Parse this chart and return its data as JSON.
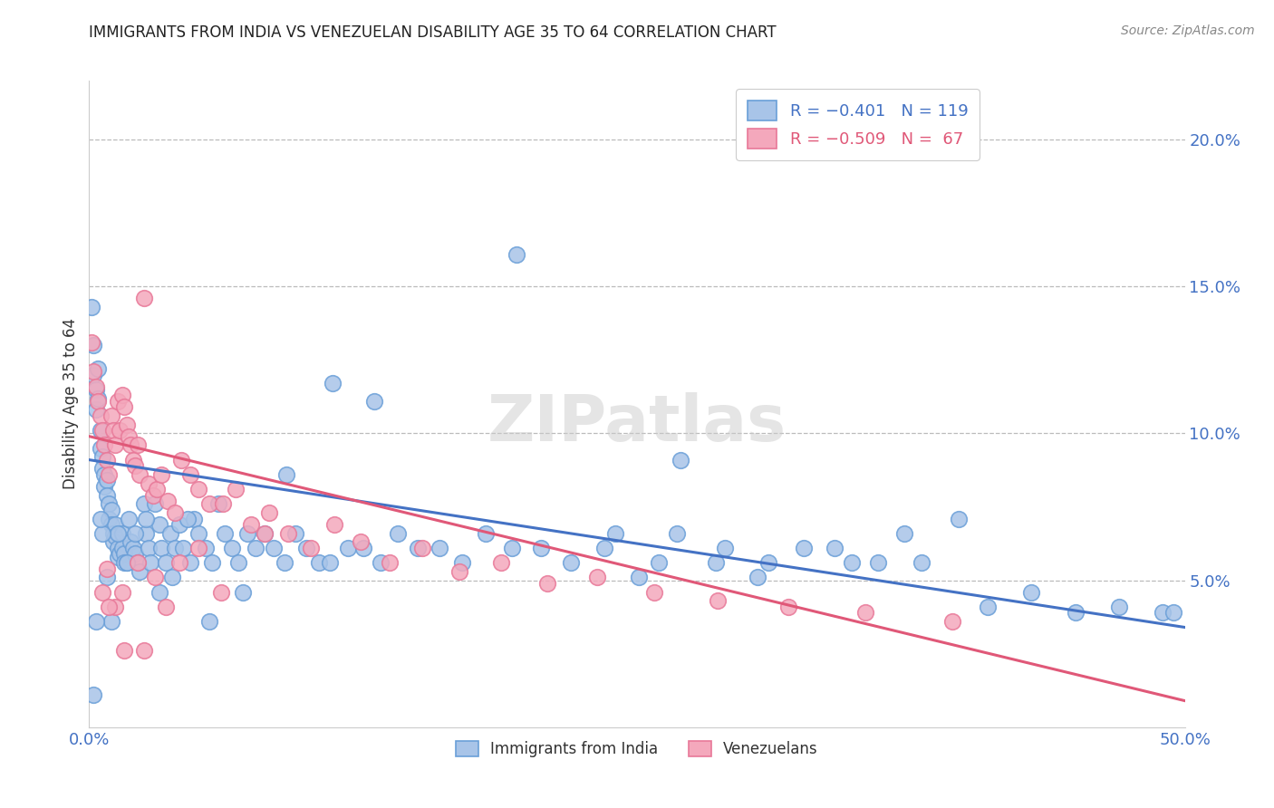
{
  "title": "IMMIGRANTS FROM INDIA VS VENEZUELAN DISABILITY AGE 35 TO 64 CORRELATION CHART",
  "source": "Source: ZipAtlas.com",
  "ylabel": "Disability Age 35 to 64",
  "x_min": 0.0,
  "x_max": 0.5,
  "y_min": 0.0,
  "y_max": 0.22,
  "y_ticks_right": [
    0.05,
    0.1,
    0.15,
    0.2
  ],
  "y_tick_labels_right": [
    "5.0%",
    "10.0%",
    "15.0%",
    "20.0%"
  ],
  "india_color": "#a8c4e8",
  "venezuela_color": "#f4a8bc",
  "india_edge_color": "#6a9fd8",
  "venezuela_edge_color": "#e87898",
  "india_line_color": "#4472c4",
  "venezuela_line_color": "#e05878",
  "watermark": "ZIPatlas",
  "india_trend_start_x": 0.0,
  "india_trend_start_y": 0.091,
  "india_trend_end_x": 0.5,
  "india_trend_end_y": 0.034,
  "venezuela_trend_start_x": 0.0,
  "venezuela_trend_start_y": 0.099,
  "venezuela_trend_end_x": 0.5,
  "venezuela_trend_end_y": 0.009,
  "india_scatter_x": [
    0.001,
    0.002,
    0.002,
    0.003,
    0.003,
    0.004,
    0.004,
    0.005,
    0.005,
    0.006,
    0.006,
    0.007,
    0.007,
    0.008,
    0.008,
    0.009,
    0.009,
    0.01,
    0.01,
    0.011,
    0.011,
    0.012,
    0.012,
    0.013,
    0.013,
    0.014,
    0.015,
    0.015,
    0.016,
    0.016,
    0.017,
    0.018,
    0.019,
    0.02,
    0.021,
    0.022,
    0.023,
    0.025,
    0.026,
    0.027,
    0.028,
    0.03,
    0.032,
    0.033,
    0.035,
    0.037,
    0.039,
    0.041,
    0.043,
    0.046,
    0.048,
    0.05,
    0.053,
    0.056,
    0.059,
    0.062,
    0.065,
    0.068,
    0.072,
    0.076,
    0.08,
    0.084,
    0.089,
    0.094,
    0.099,
    0.105,
    0.111,
    0.118,
    0.125,
    0.133,
    0.141,
    0.15,
    0.16,
    0.17,
    0.181,
    0.193,
    0.206,
    0.22,
    0.235,
    0.251,
    0.268,
    0.286,
    0.305,
    0.326,
    0.348,
    0.372,
    0.397,
    0.24,
    0.26,
    0.29,
    0.31,
    0.34,
    0.36,
    0.38,
    0.41,
    0.43,
    0.45,
    0.47,
    0.49,
    0.495,
    0.13,
    0.195,
    0.27,
    0.11,
    0.09,
    0.07,
    0.055,
    0.045,
    0.038,
    0.032,
    0.026,
    0.021,
    0.017,
    0.013,
    0.01,
    0.008,
    0.006,
    0.005,
    0.003,
    0.002
  ],
  "india_scatter_y": [
    0.143,
    0.13,
    0.12,
    0.115,
    0.108,
    0.122,
    0.112,
    0.101,
    0.095,
    0.092,
    0.088,
    0.086,
    0.082,
    0.084,
    0.079,
    0.076,
    0.071,
    0.074,
    0.069,
    0.066,
    0.063,
    0.069,
    0.065,
    0.061,
    0.058,
    0.059,
    0.066,
    0.061,
    0.059,
    0.056,
    0.056,
    0.071,
    0.063,
    0.061,
    0.059,
    0.056,
    0.053,
    0.076,
    0.066,
    0.061,
    0.056,
    0.076,
    0.069,
    0.061,
    0.056,
    0.066,
    0.061,
    0.069,
    0.061,
    0.056,
    0.071,
    0.066,
    0.061,
    0.056,
    0.076,
    0.066,
    0.061,
    0.056,
    0.066,
    0.061,
    0.066,
    0.061,
    0.056,
    0.066,
    0.061,
    0.056,
    0.117,
    0.061,
    0.061,
    0.056,
    0.066,
    0.061,
    0.061,
    0.056,
    0.066,
    0.061,
    0.061,
    0.056,
    0.061,
    0.051,
    0.066,
    0.056,
    0.051,
    0.061,
    0.056,
    0.066,
    0.071,
    0.066,
    0.056,
    0.061,
    0.056,
    0.061,
    0.056,
    0.056,
    0.041,
    0.046,
    0.039,
    0.041,
    0.039,
    0.039,
    0.111,
    0.161,
    0.091,
    0.056,
    0.086,
    0.046,
    0.036,
    0.071,
    0.051,
    0.046,
    0.071,
    0.066,
    0.056,
    0.066,
    0.036,
    0.051,
    0.066,
    0.071,
    0.036,
    0.011
  ],
  "venezuela_scatter_x": [
    0.001,
    0.002,
    0.003,
    0.004,
    0.005,
    0.006,
    0.007,
    0.008,
    0.009,
    0.01,
    0.011,
    0.012,
    0.013,
    0.014,
    0.015,
    0.016,
    0.017,
    0.018,
    0.019,
    0.02,
    0.021,
    0.022,
    0.023,
    0.025,
    0.027,
    0.029,
    0.031,
    0.033,
    0.036,
    0.039,
    0.042,
    0.046,
    0.05,
    0.055,
    0.061,
    0.067,
    0.074,
    0.082,
    0.091,
    0.101,
    0.112,
    0.124,
    0.137,
    0.152,
    0.169,
    0.188,
    0.209,
    0.232,
    0.258,
    0.287,
    0.319,
    0.354,
    0.394,
    0.05,
    0.08,
    0.035,
    0.016,
    0.025,
    0.012,
    0.008,
    0.006,
    0.009,
    0.015,
    0.022,
    0.03,
    0.041,
    0.06
  ],
  "venezuela_scatter_y": [
    0.131,
    0.121,
    0.116,
    0.111,
    0.106,
    0.101,
    0.096,
    0.091,
    0.086,
    0.106,
    0.101,
    0.096,
    0.111,
    0.101,
    0.113,
    0.109,
    0.103,
    0.099,
    0.096,
    0.091,
    0.089,
    0.096,
    0.086,
    0.146,
    0.083,
    0.079,
    0.081,
    0.086,
    0.077,
    0.073,
    0.091,
    0.086,
    0.081,
    0.076,
    0.076,
    0.081,
    0.069,
    0.073,
    0.066,
    0.061,
    0.069,
    0.063,
    0.056,
    0.061,
    0.053,
    0.056,
    0.049,
    0.051,
    0.046,
    0.043,
    0.041,
    0.039,
    0.036,
    0.061,
    0.066,
    0.041,
    0.026,
    0.026,
    0.041,
    0.054,
    0.046,
    0.041,
    0.046,
    0.056,
    0.051,
    0.056,
    0.046
  ]
}
